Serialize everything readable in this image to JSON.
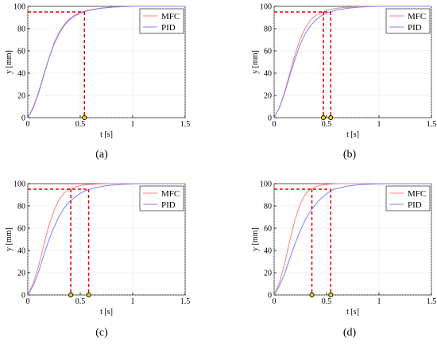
{
  "chart_data": [
    {
      "type": "line",
      "panel_label": "(a)",
      "xlabel": "t [s]",
      "ylabel": "y [mm]",
      "xlim": [
        0,
        1.5
      ],
      "ylim": [
        0,
        100
      ],
      "xticks": [
        "0",
        "0.5",
        "1",
        "1.5"
      ],
      "yticks": [
        "0",
        "20",
        "40",
        "60",
        "80",
        "100"
      ],
      "grid": true,
      "legend": "top-right",
      "reference_level": 95,
      "markers_x": [
        0.54
      ],
      "series": [
        {
          "name": "MFC",
          "color": "#ff7f7f",
          "x": [
            0,
            0.05,
            0.1,
            0.15,
            0.2,
            0.25,
            0.3,
            0.35,
            0.4,
            0.45,
            0.5,
            0.55,
            0.6,
            0.7,
            0.8,
            0.9,
            1.0,
            1.1,
            1.2,
            1.3,
            1.4,
            1.5
          ],
          "y": [
            0,
            8,
            21,
            37,
            53,
            67,
            77,
            84,
            89,
            92.5,
            94.5,
            96,
            97,
            98.5,
            99.3,
            99.7,
            100,
            100,
            100,
            100,
            100,
            100
          ]
        },
        {
          "name": "PID",
          "color": "#7f7fff",
          "x": [
            0,
            0.05,
            0.1,
            0.15,
            0.2,
            0.25,
            0.3,
            0.35,
            0.4,
            0.45,
            0.5,
            0.55,
            0.6,
            0.7,
            0.8,
            0.9,
            1.0,
            1.1,
            1.2,
            1.3,
            1.4,
            1.5
          ],
          "y": [
            0,
            9,
            22,
            38,
            53,
            66,
            76,
            83,
            88,
            91.5,
            94,
            95.5,
            96.7,
            98.3,
            99.2,
            99.7,
            100,
            100,
            100,
            100,
            100,
            100
          ]
        }
      ]
    },
    {
      "type": "line",
      "panel_label": "(b)",
      "xlabel": "t [s]",
      "ylabel": "y [mm]",
      "xlim": [
        0,
        1.5
      ],
      "ylim": [
        0,
        100
      ],
      "xticks": [
        "0",
        "0.5",
        "1",
        "1.5"
      ],
      "yticks": [
        "0",
        "20",
        "40",
        "60",
        "80",
        "100"
      ],
      "grid": true,
      "legend": "top-right",
      "reference_level": 95,
      "markers_x": [
        0.47,
        0.54
      ],
      "series": [
        {
          "name": "MFC",
          "color": "#ff7f7f",
          "x": [
            0,
            0.05,
            0.1,
            0.15,
            0.2,
            0.25,
            0.3,
            0.35,
            0.4,
            0.45,
            0.5,
            0.55,
            0.6,
            0.7,
            0.8,
            0.9,
            1.0,
            1.1,
            1.2,
            1.3,
            1.4,
            1.5
          ],
          "y": [
            0,
            9,
            23,
            40,
            57,
            71,
            81,
            88,
            92,
            94.5,
            96.3,
            97.5,
            98.3,
            99.3,
            99.7,
            100,
            100,
            100,
            100,
            100,
            100,
            100
          ]
        },
        {
          "name": "PID",
          "color": "#7f7fff",
          "x": [
            0,
            0.05,
            0.1,
            0.15,
            0.2,
            0.25,
            0.3,
            0.35,
            0.4,
            0.45,
            0.5,
            0.55,
            0.6,
            0.7,
            0.8,
            0.9,
            1.0,
            1.1,
            1.2,
            1.3,
            1.4,
            1.5
          ],
          "y": [
            0,
            9,
            22,
            38,
            53,
            66,
            76,
            83,
            88,
            91.5,
            94,
            95.5,
            96.7,
            98.3,
            99.2,
            99.7,
            100,
            100,
            100,
            100,
            100,
            100
          ]
        }
      ]
    },
    {
      "type": "line",
      "panel_label": "(c)",
      "xlabel": "t [s]",
      "ylabel": "y [mm]",
      "xlim": [
        0,
        1.5
      ],
      "ylim": [
        0,
        100
      ],
      "xticks": [
        "0",
        "0.5",
        "1",
        "1.5"
      ],
      "yticks": [
        "0",
        "20",
        "40",
        "60",
        "80",
        "100"
      ],
      "grid": true,
      "legend": "top-right",
      "reference_level": 95,
      "markers_x": [
        0.41,
        0.58
      ],
      "series": [
        {
          "name": "MFC",
          "color": "#ff7f7f",
          "x": [
            0,
            0.05,
            0.1,
            0.15,
            0.2,
            0.25,
            0.3,
            0.35,
            0.4,
            0.45,
            0.5,
            0.55,
            0.6,
            0.7,
            0.8,
            0.9,
            1.0,
            1.1,
            1.2,
            1.3,
            1.4,
            1.5
          ],
          "y": [
            0,
            10,
            25,
            44,
            62,
            76,
            86,
            92,
            95.2,
            97,
            98.2,
            99,
            99.4,
            99.8,
            100,
            100,
            100,
            100,
            100,
            100,
            100,
            100
          ]
        },
        {
          "name": "PID",
          "color": "#7f7fff",
          "x": [
            0,
            0.05,
            0.1,
            0.15,
            0.2,
            0.25,
            0.3,
            0.35,
            0.4,
            0.45,
            0.5,
            0.55,
            0.6,
            0.7,
            0.8,
            0.9,
            1.0,
            1.1,
            1.2,
            1.3,
            1.4,
            1.5
          ],
          "y": [
            0,
            8,
            20,
            35,
            49,
            61,
            71,
            78.5,
            84,
            88,
            91.3,
            93.7,
            95.3,
            97.5,
            98.7,
            99.4,
            99.8,
            100,
            100,
            100,
            100,
            100
          ]
        }
      ]
    },
    {
      "type": "line",
      "panel_label": "(d)",
      "xlabel": "t [s]",
      "ylabel": "y [mm]",
      "xlim": [
        0,
        1.5
      ],
      "ylim": [
        0,
        100
      ],
      "xticks": [
        "0",
        "0.5",
        "1",
        "1.5"
      ],
      "yticks": [
        "0",
        "20",
        "40",
        "60",
        "80",
        "100"
      ],
      "grid": true,
      "legend": "top-right",
      "reference_level": 95,
      "markers_x": [
        0.36,
        0.54
      ],
      "series": [
        {
          "name": "MFC",
          "color": "#ff7f7f",
          "x": [
            0,
            0.05,
            0.1,
            0.15,
            0.2,
            0.25,
            0.3,
            0.35,
            0.4,
            0.45,
            0.5,
            0.55,
            0.6,
            0.7,
            0.8,
            0.9,
            1.0,
            1.1,
            1.2,
            1.3,
            1.4,
            1.5
          ],
          "y": [
            0,
            11,
            28,
            49,
            68,
            82,
            91,
            95.3,
            97.5,
            98.7,
            99.3,
            99.7,
            100,
            100,
            100,
            100,
            100,
            100,
            100,
            100,
            100,
            100
          ]
        },
        {
          "name": "PID",
          "color": "#7f7fff",
          "x": [
            0,
            0.05,
            0.1,
            0.15,
            0.2,
            0.25,
            0.3,
            0.35,
            0.4,
            0.45,
            0.5,
            0.55,
            0.6,
            0.7,
            0.8,
            0.9,
            1.0,
            1.1,
            1.2,
            1.3,
            1.4,
            1.5
          ],
          "y": [
            0,
            8,
            19,
            33,
            46,
            58,
            68,
            76,
            82,
            87,
            90.8,
            94.2,
            95.8,
            97.8,
            98.9,
            99.5,
            99.8,
            100,
            100,
            100,
            100,
            100
          ]
        }
      ]
    }
  ]
}
